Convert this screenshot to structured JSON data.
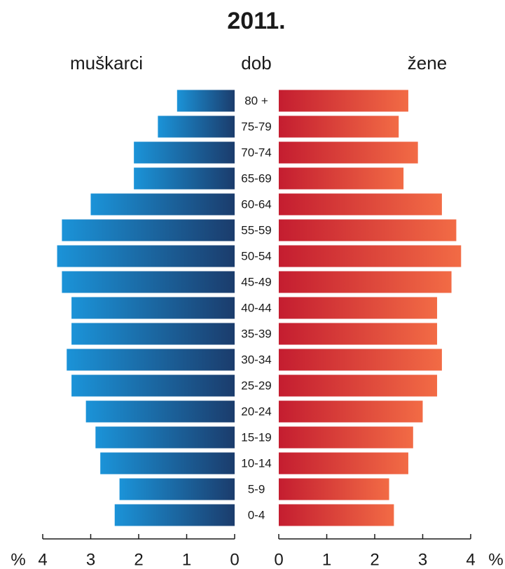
{
  "chart_data": {
    "type": "pyramid",
    "title": "2011.",
    "category_label": "dob",
    "xlabel": "%",
    "categories": [
      "80 +",
      "75-79",
      "70-74",
      "65-69",
      "60-64",
      "55-59",
      "50-54",
      "45-49",
      "40-44",
      "35-39",
      "30-34",
      "25-29",
      "20-24",
      "15-19",
      "10-14",
      "5-9",
      "0-4"
    ],
    "series": [
      {
        "name": "muškarci",
        "color": "#1b93d8",
        "color_end": "#1b3c6c",
        "side": "left",
        "values": [
          1.2,
          1.6,
          2.1,
          2.1,
          3.0,
          3.6,
          3.7,
          3.6,
          3.4,
          3.4,
          3.5,
          3.4,
          3.1,
          2.9,
          2.8,
          2.4,
          2.5
        ]
      },
      {
        "name": "žene",
        "color": "#c41d30",
        "color_end": "#f26b45",
        "side": "right",
        "values": [
          2.7,
          2.5,
          2.9,
          2.6,
          3.4,
          3.7,
          3.8,
          3.6,
          3.3,
          3.3,
          3.4,
          3.3,
          3.0,
          2.8,
          2.7,
          2.3,
          2.4
        ]
      }
    ],
    "xlim": [
      0,
      4
    ],
    "xticks": [
      0,
      1,
      2,
      3,
      4
    ]
  }
}
